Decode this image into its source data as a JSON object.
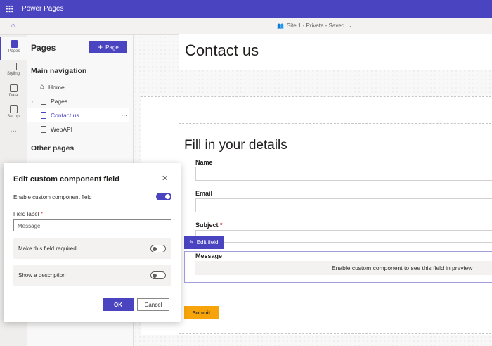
{
  "app": {
    "title": "Power Pages"
  },
  "subbar": {
    "site_status": "Site 1 - Private - Saved"
  },
  "rail": [
    {
      "label": "Pages"
    },
    {
      "label": "Styling"
    },
    {
      "label": "Data"
    },
    {
      "label": "Set up"
    },
    {
      "label": "..."
    }
  ],
  "panel": {
    "title": "Pages",
    "add_button": "Page",
    "main_nav_heading": "Main navigation",
    "main_nav": [
      {
        "label": "Home"
      },
      {
        "label": "Pages"
      },
      {
        "label": "Contact us",
        "more": "···"
      },
      {
        "label": "WebAPI"
      }
    ],
    "other_heading": "Other pages"
  },
  "canvas": {
    "page_heading": "Contact us",
    "form_title": "Fill in your details",
    "fields": {
      "name": "Name",
      "email": "Email",
      "subject": "Subject",
      "required_mark": "*",
      "message": "Message"
    },
    "edit_field_button": "Edit field",
    "message_placeholder": "Enable custom component to see this field in preview",
    "submit": "Submit"
  },
  "dialog": {
    "title": "Edit custom component field",
    "enable_label": "Enable custom component field",
    "enable_on": true,
    "field_label": "Field label",
    "required_mark": "*",
    "field_value": "Message",
    "required_label": "Make this field required",
    "required_on": false,
    "description_label": "Show a description",
    "description_on": false,
    "ok": "OK",
    "cancel": "Cancel"
  },
  "colors": {
    "accent": "#4b44c0",
    "submit": "#f7a30a"
  }
}
